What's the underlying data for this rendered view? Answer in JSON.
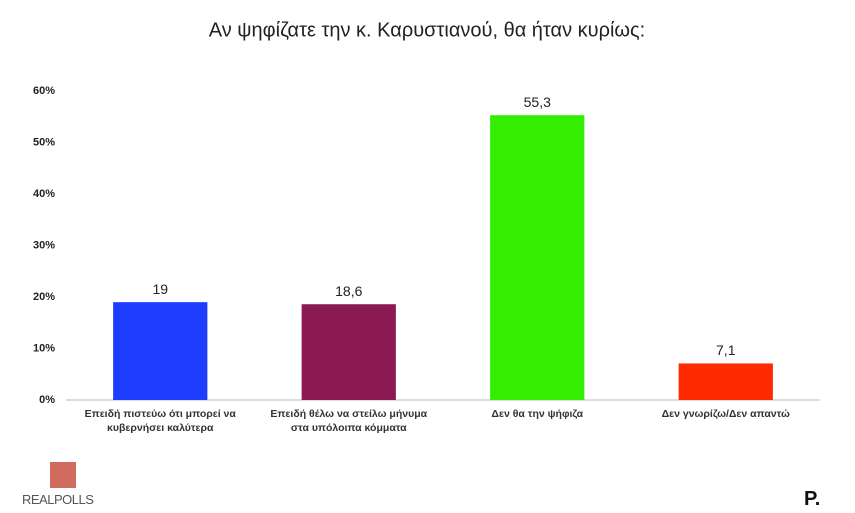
{
  "chart_data": {
    "type": "bar",
    "title": "Αν ψηφίζατε την κ. Καρυστιανού, θα ήταν κυρίως:",
    "categories": [
      "Επειδή πιστεύω ότι μπορεί να κυβερνήσει καλύτερα",
      "Επειδή θέλω να στείλω μήνυμα στα υπόλοιπα κόμματα",
      "Δεν θα την ψήφιζα",
      "Δεν γνωρίζω/Δεν απαντώ"
    ],
    "values": [
      19,
      18.6,
      55.3,
      7.1
    ],
    "value_labels": [
      "19",
      "18,6",
      "55,3",
      "7,1"
    ],
    "colors": [
      "#1f3dff",
      "#8c1a52",
      "#33ee00",
      "#ff2a00"
    ],
    "ylim": [
      0,
      60
    ],
    "yticks": [
      {
        "value": 0,
        "label": "0%"
      },
      {
        "value": 10,
        "label": "10%"
      },
      {
        "value": 20,
        "label": "20%"
      },
      {
        "value": 30,
        "label": "30%"
      },
      {
        "value": 40,
        "label": "40%"
      },
      {
        "value": 50,
        "label": "50%"
      },
      {
        "value": 60,
        "label": "60%"
      }
    ],
    "grid": false
  },
  "logos": {
    "left": "REALPOLLS",
    "right": "P."
  }
}
